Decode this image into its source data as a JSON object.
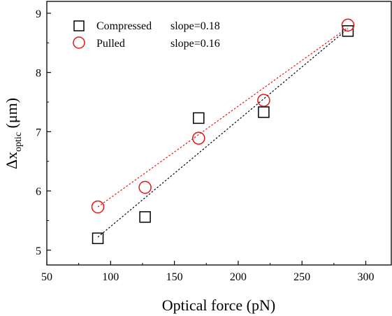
{
  "chart_data": {
    "type": "scatter",
    "title": "",
    "xlabel": "Optical force (pN)",
    "ylabel_main": "Δx",
    "ylabel_sub": "optic",
    "ylabel_unit": " (μm)",
    "xlim": [
      50,
      320
    ],
    "ylim": [
      4.75,
      9.2
    ],
    "xticks": [
      50,
      100,
      150,
      200,
      250,
      300
    ],
    "yticks": [
      5,
      6,
      7,
      8,
      9
    ],
    "legend_position": "top-left",
    "series": [
      {
        "name": "Compressed",
        "legend_slope": "slope=0.18",
        "marker": "square",
        "color": "#000000",
        "x": [
          90,
          127,
          169,
          220,
          286
        ],
        "y": [
          5.2,
          5.56,
          7.23,
          7.33,
          8.7
        ],
        "fit_x": [
          90,
          286
        ],
        "fit_y": [
          5.22,
          8.74
        ]
      },
      {
        "name": "Pulled",
        "legend_slope": "slope=0.16",
        "marker": "circle",
        "color": "#ee1111",
        "x": [
          90,
          127,
          169,
          220,
          286
        ],
        "y": [
          5.73,
          6.06,
          6.89,
          7.53,
          8.8
        ],
        "fit_x": [
          90,
          286
        ],
        "fit_y": [
          5.73,
          8.76
        ]
      }
    ]
  }
}
